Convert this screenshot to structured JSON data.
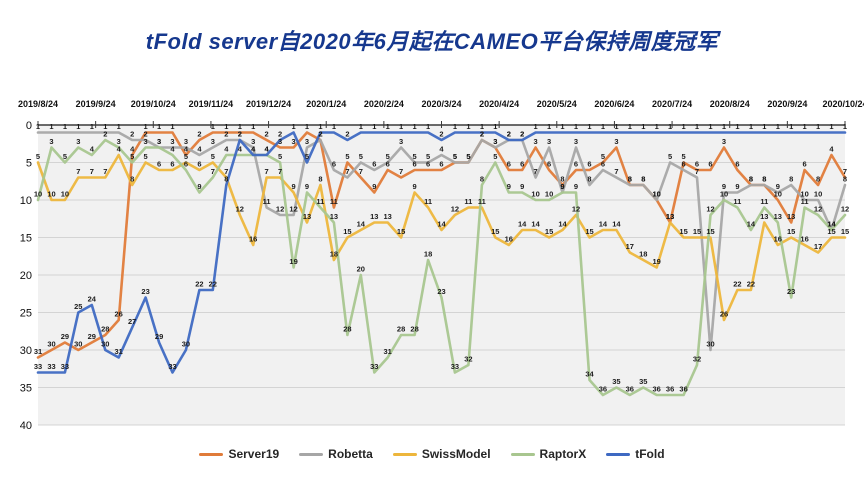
{
  "title": "tFold server自2020年6月起在CAMEO平台保持周度冠军",
  "chart_data": {
    "type": "line",
    "title": "tFold server自2020年6月起在CAMEO平台保持周度冠军",
    "xlabel": "",
    "ylabel": "",
    "y_axis_inverted": true,
    "ylim": [
      0,
      40
    ],
    "y_ticks": [
      0,
      5,
      10,
      15,
      20,
      25,
      30,
      35,
      40
    ],
    "grid": true,
    "legend_position": "bottom",
    "show_data_labels": true,
    "x_tick_labels": [
      "2019/8/24",
      "2019/9/24",
      "2019/10/24",
      "2019/11/24",
      "2019/12/24",
      "2020/1/24",
      "2020/2/24",
      "2020/3/24",
      "2020/4/24",
      "2020/5/24",
      "2020/6/24",
      "2020/7/24",
      "2020/8/24",
      "2020/9/24",
      "2020/10/24"
    ],
    "points_per_series": 61,
    "series": [
      {
        "name": "Server19",
        "color": "#E07B39",
        "values": [
          31,
          30,
          29,
          30,
          29,
          28,
          26,
          4,
          1,
          1,
          1,
          4,
          2,
          1,
          1,
          1,
          1,
          2,
          3,
          3,
          1,
          2,
          11,
          5,
          7,
          9,
          6,
          7,
          6,
          6,
          6,
          5,
          5,
          2,
          3,
          6,
          6,
          3,
          6,
          8,
          6,
          6,
          5,
          3,
          8,
          8,
          10,
          13,
          5,
          6,
          6,
          3,
          6,
          8,
          8,
          10,
          13,
          6,
          8,
          4,
          7
        ]
      },
      {
        "name": "Robetta",
        "color": "#A6A6A6",
        "values": [
          1,
          1,
          1,
          1,
          1,
          1,
          1,
          2,
          2,
          3,
          3,
          3,
          4,
          3,
          2,
          2,
          3,
          11,
          12,
          12,
          3,
          2,
          6,
          7,
          5,
          6,
          5,
          3,
          5,
          5,
          4,
          5,
          5,
          2,
          3,
          2,
          2,
          7,
          3,
          9,
          3,
          8,
          6,
          7,
          8,
          8,
          10,
          5,
          6,
          7,
          30,
          9,
          9,
          8,
          8,
          9,
          8,
          10,
          10,
          14,
          8
        ]
      },
      {
        "name": "SwissModel",
        "color": "#EDB63C",
        "values": [
          5,
          10,
          10,
          7,
          7,
          7,
          4,
          8,
          5,
          6,
          6,
          5,
          6,
          5,
          7,
          12,
          16,
          7,
          7,
          9,
          13,
          8,
          18,
          15,
          14,
          13,
          13,
          15,
          9,
          11,
          14,
          12,
          11,
          11,
          15,
          16,
          14,
          14,
          15,
          14,
          12,
          15,
          14,
          14,
          17,
          18,
          19,
          13,
          15,
          15,
          15,
          26,
          22,
          22,
          13,
          16,
          15,
          16,
          17,
          15,
          15
        ]
      },
      {
        "name": "RaptorX",
        "color": "#A8C68F",
        "values": [
          10,
          3,
          5,
          3,
          4,
          2,
          3,
          5,
          3,
          3,
          4,
          6,
          9,
          7,
          4,
          4,
          4,
          4,
          5,
          19,
          9,
          11,
          13,
          28,
          20,
          33,
          31,
          28,
          28,
          18,
          23,
          33,
          32,
          8,
          5,
          9,
          9,
          10,
          10,
          9,
          9,
          34,
          36,
          35,
          36,
          35,
          36,
          36,
          36,
          32,
          12,
          10,
          11,
          14,
          11,
          13,
          23,
          11,
          12,
          14,
          12
        ]
      },
      {
        "name": "tFold",
        "color": "#3E69C2",
        "values": [
          33,
          33,
          33,
          25,
          24,
          30,
          31,
          27,
          23,
          29,
          33,
          30,
          22,
          22,
          8,
          2,
          4,
          4,
          2,
          1,
          5,
          1,
          1,
          2,
          1,
          1,
          1,
          1,
          1,
          1,
          2,
          1,
          1,
          1,
          1,
          2,
          2,
          1,
          1,
          1,
          1,
          1,
          1,
          1,
          1,
          1,
          1,
          1,
          1,
          1,
          1,
          1,
          1,
          1,
          1,
          1,
          1,
          1,
          1,
          1,
          1
        ]
      }
    ]
  }
}
